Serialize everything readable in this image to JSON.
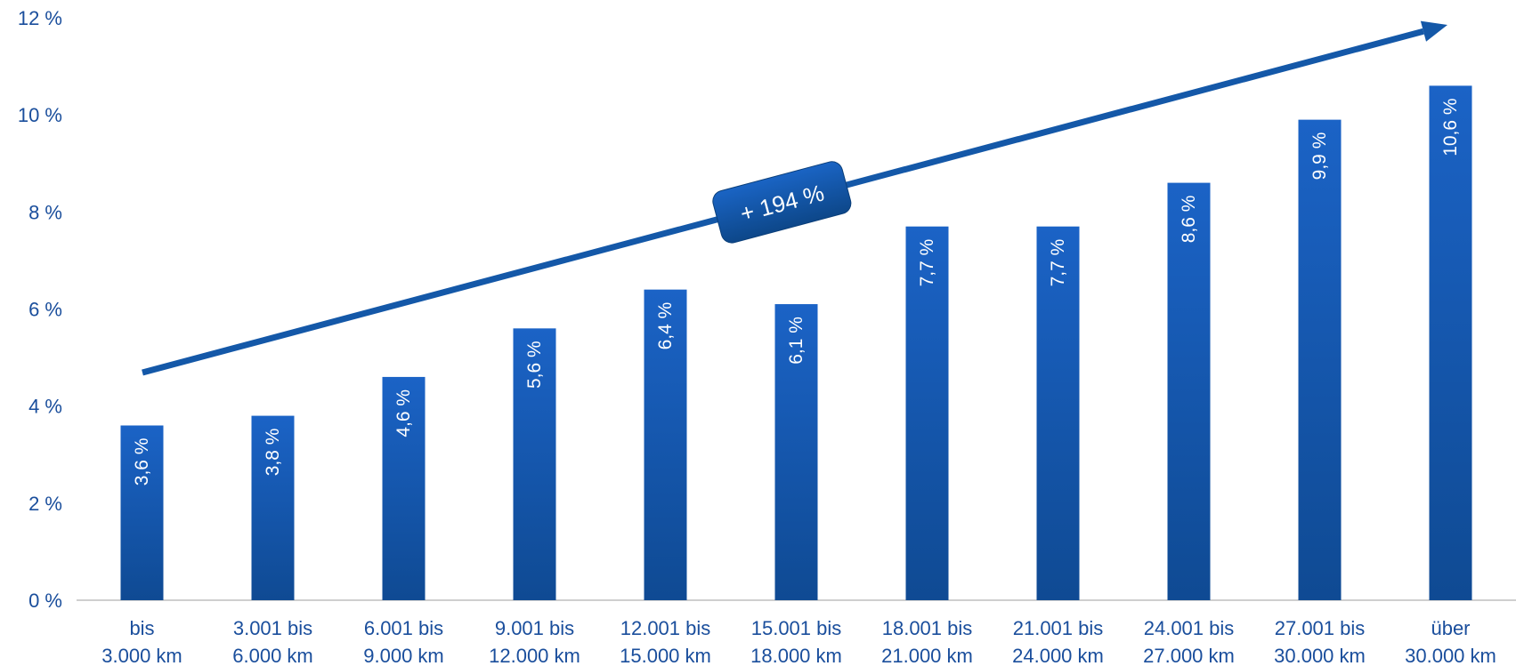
{
  "chart_data": {
    "type": "bar",
    "categories": [
      [
        "bis",
        "3.000 km"
      ],
      [
        "3.001 bis",
        "6.000 km"
      ],
      [
        "6.001 bis",
        "9.000 km"
      ],
      [
        "9.001 bis",
        "12.000 km"
      ],
      [
        "12.001 bis",
        "15.000 km"
      ],
      [
        "15.001 bis",
        "18.000 km"
      ],
      [
        "18.001 bis",
        "21.000 km"
      ],
      [
        "21.001 bis",
        "24.000 km"
      ],
      [
        "24.001 bis",
        "27.000 km"
      ],
      [
        "27.001 bis",
        "30.000 km"
      ],
      [
        "über",
        "30.000 km"
      ]
    ],
    "values": [
      3.6,
      3.8,
      4.6,
      5.6,
      6.4,
      6.1,
      7.7,
      7.7,
      8.6,
      9.9,
      10.6
    ],
    "data_labels": [
      "3,6 %",
      "3,8 %",
      "4,6 %",
      "5,6 %",
      "6,4 %",
      "6,1 %",
      "7,7 %",
      "7,7 %",
      "8,6 %",
      "9,9 %",
      "10,6 %"
    ],
    "ylim": [
      0,
      12
    ],
    "yticks": [
      0,
      2,
      4,
      6,
      8,
      10,
      12
    ],
    "ytick_labels": [
      "0 %",
      "2 %",
      "4 %",
      "6 %",
      "8 %",
      "10 %",
      "12 %"
    ],
    "trend_annotation": "+ 194 %",
    "grid": false,
    "colors": {
      "bar_top": "#1b63c6",
      "bar_bottom": "#0f4a93",
      "axis_text": "#1a4e9c",
      "arrow": "#1458a8",
      "baseline": "#bfbfbf"
    }
  }
}
